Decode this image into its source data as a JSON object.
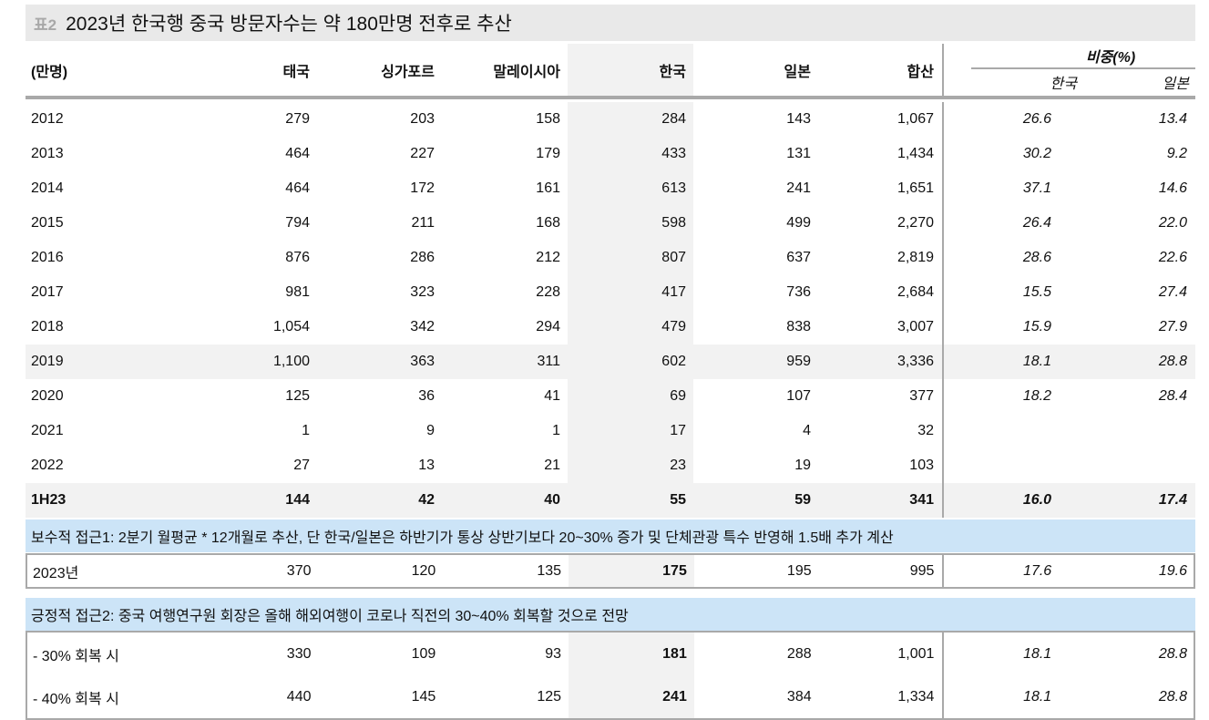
{
  "title": {
    "tag": "표2",
    "text": "2023년 한국행 중국 방문자수는 약 180만명 전후로 추산"
  },
  "header": {
    "unit": "(만명)",
    "cols": [
      "태국",
      "싱가포르",
      "말레이시아",
      "한국",
      "일본",
      "합산"
    ],
    "share_group": "비중(%)",
    "share_cols": [
      "한국",
      "일본"
    ]
  },
  "rows": [
    [
      "2012",
      "279",
      "203",
      "158",
      "284",
      "143",
      "1,067",
      "26.6",
      "13.4"
    ],
    [
      "2013",
      "464",
      "227",
      "179",
      "433",
      "131",
      "1,434",
      "30.2",
      "9.2"
    ],
    [
      "2014",
      "464",
      "172",
      "161",
      "613",
      "241",
      "1,651",
      "37.1",
      "14.6"
    ],
    [
      "2015",
      "794",
      "211",
      "168",
      "598",
      "499",
      "2,270",
      "26.4",
      "22.0"
    ],
    [
      "2016",
      "876",
      "286",
      "212",
      "807",
      "637",
      "2,819",
      "28.6",
      "22.6"
    ],
    [
      "2017",
      "981",
      "323",
      "228",
      "417",
      "736",
      "2,684",
      "15.5",
      "27.4"
    ],
    [
      "2018",
      "1,054",
      "342",
      "294",
      "479",
      "838",
      "3,007",
      "15.9",
      "27.9"
    ],
    [
      "2019",
      "1,100",
      "363",
      "311",
      "602",
      "959",
      "3,336",
      "18.1",
      "28.8"
    ],
    [
      "2020",
      "125",
      "36",
      "41",
      "69",
      "107",
      "377",
      "18.2",
      "28.4"
    ],
    [
      "2021",
      "1",
      "9",
      "1",
      "17",
      "4",
      "32",
      "",
      ""
    ],
    [
      "2022",
      "27",
      "13",
      "21",
      "23",
      "19",
      "103",
      "",
      ""
    ],
    [
      "1H23",
      "144",
      "42",
      "40",
      "55",
      "59",
      "341",
      "16.0",
      "17.4"
    ]
  ],
  "approach1": {
    "label": "보수적 접근1: 2분기 월평균 * 12개월로 추산, 단 한국/일본은 하반기가 통상 상반기보다 20~30% 증가 및 단체관광 특수 반영해 1.5배 추가 계산",
    "rows": [
      [
        "2023년",
        "370",
        "120",
        "135",
        "175",
        "195",
        "995",
        "17.6",
        "19.6"
      ]
    ]
  },
  "approach2": {
    "label": "긍정적 접근2: 중국 여행연구원 회장은 올해 해외여행이 코로나 직전의 30~40% 회복할 것으로 전망",
    "rows": [
      [
        "- 30% 회복 시",
        "330",
        "109",
        "93",
        "181",
        "288",
        "1,001",
        "18.1",
        "28.8"
      ],
      [
        "- 40% 회복 시",
        "440",
        "145",
        "125",
        "241",
        "384",
        "1,334",
        "18.1",
        "28.8"
      ]
    ]
  },
  "colors": {
    "band": "#cce4f7",
    "shade": "#f2f2f2",
    "title_bg": "#e9e9e9"
  }
}
